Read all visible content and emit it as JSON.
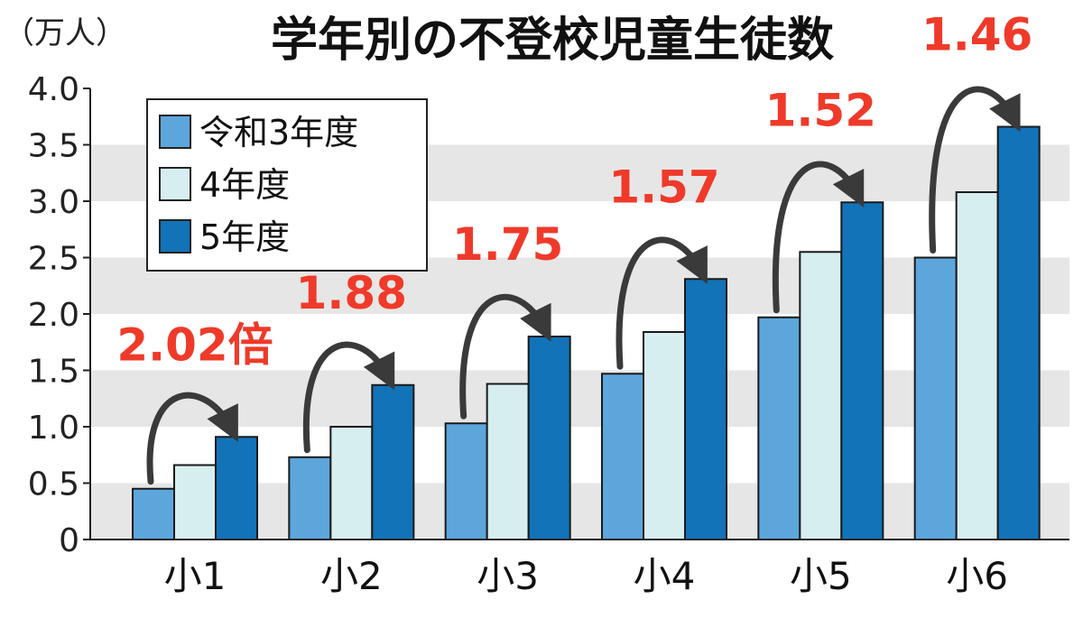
{
  "chart_data": {
    "type": "bar",
    "title": "学年別の不登校児童生徒数",
    "ylabel": "（万人）",
    "ylim": [
      0,
      4.0
    ],
    "yticks": [
      {
        "value": 0,
        "label": "0"
      },
      {
        "value": 0.5,
        "label": "0.5"
      },
      {
        "value": 1.0,
        "label": "1.0"
      },
      {
        "value": 1.5,
        "label": "1.5"
      },
      {
        "value": 2.0,
        "label": "2.0"
      },
      {
        "value": 2.5,
        "label": "2.5"
      },
      {
        "value": 3.0,
        "label": "3.0"
      },
      {
        "value": 3.5,
        "label": "3.5"
      },
      {
        "value": 4.0,
        "label": "4.0"
      }
    ],
    "categories": [
      "小1",
      "小2",
      "小3",
      "小4",
      "小5",
      "小6"
    ],
    "series": [
      {
        "name": "令和3年度",
        "color": "#5ca6dc",
        "values": [
          0.45,
          0.73,
          1.03,
          1.47,
          1.97,
          2.5
        ]
      },
      {
        "name": "4年度",
        "color": "#d7eef0",
        "values": [
          0.66,
          1.0,
          1.38,
          1.84,
          2.55,
          3.08
        ]
      },
      {
        "name": "5年度",
        "color": "#1273b8",
        "values": [
          0.91,
          1.37,
          1.8,
          2.31,
          2.99,
          3.66
        ]
      }
    ],
    "annotations": [
      {
        "category": "小1",
        "label": "2.02倍",
        "color": "#ef3a2a"
      },
      {
        "category": "小2",
        "label": "1.88",
        "color": "#ef3a2a"
      },
      {
        "category": "小3",
        "label": "1.75",
        "color": "#ef3a2a"
      },
      {
        "category": "小4",
        "label": "1.57",
        "color": "#ef3a2a"
      },
      {
        "category": "小5",
        "label": "1.52",
        "color": "#ef3a2a"
      },
      {
        "category": "小6",
        "label": "1.46",
        "color": "#ef3a2a"
      }
    ],
    "grid": "alternating bands",
    "band_color": "#e6e6e6",
    "legend_position": "top-left",
    "arrow_color": "#3a3a3a"
  }
}
